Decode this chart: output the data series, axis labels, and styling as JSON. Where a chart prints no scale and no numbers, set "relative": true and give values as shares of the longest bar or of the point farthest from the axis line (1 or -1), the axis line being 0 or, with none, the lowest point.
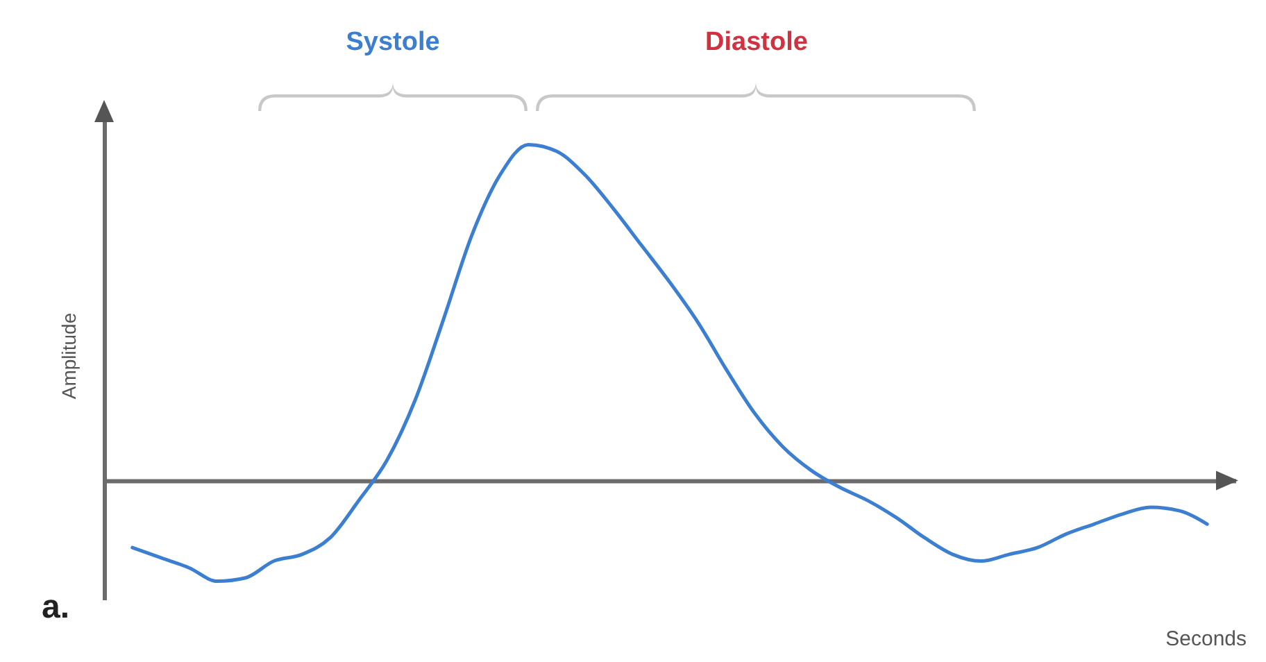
{
  "chart_data": {
    "type": "line",
    "relative": true,
    "ylabel": "Amplitude",
    "xlabel": "Seconds",
    "annotations": [
      "Systole",
      "Diastole",
      "a."
    ],
    "categories": [
      null,
      null,
      null,
      null,
      null,
      null,
      null,
      null,
      null,
      null,
      null,
      null,
      null,
      null,
      null,
      null,
      null,
      null,
      null,
      null,
      null,
      null,
      null,
      null,
      null,
      null,
      null,
      null,
      null,
      null,
      null,
      null,
      null,
      null,
      null,
      null,
      null,
      null,
      null
    ],
    "series": [
      {
        "color": "#3c7fd0",
        "values": [
          -0.2,
          -0.23,
          -0.26,
          -0.3,
          -0.29,
          -0.24,
          -0.22,
          -0.17,
          -0.06,
          0.06,
          0.24,
          0.48,
          0.73,
          0.91,
          1,
          0.98,
          0.91,
          0.81,
          0.7,
          0.59,
          0.47,
          0.33,
          0.2,
          0.1,
          0.03,
          -0.02,
          -0.06,
          -0.11,
          -0.17,
          -0.22,
          -0.24,
          -0.22,
          -0.2,
          -0.16,
          -0.13,
          -0.1,
          -0.08,
          -0.09,
          -0.13
        ]
      }
    ]
  }
}
